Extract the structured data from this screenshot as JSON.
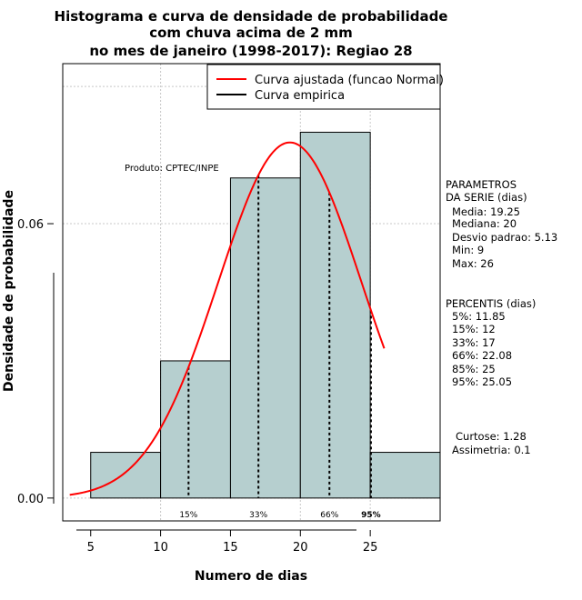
{
  "chart_data": {
    "type": "bar",
    "title_lines": [
      "Histograma e curva de densidade de probabilidade",
      "com chuva acima de 2 mm",
      "no mes de janeiro (1998-2017): Regiao 28"
    ],
    "xlabel": "Numero de dias",
    "ylabel": "Densidade de probabilidade",
    "xlim": [
      3,
      30
    ],
    "ylim": [
      -0.005,
      0.095
    ],
    "x_ticks": [
      5,
      10,
      15,
      20,
      25
    ],
    "y_ticks": [
      0.0,
      0.06
    ],
    "y_tick_labels": [
      "0.00",
      "0.06"
    ],
    "grid_x": [
      10,
      20,
      25
    ],
    "grid_y": [
      0.06,
      0.09
    ],
    "bins": [
      {
        "x0": 5,
        "x1": 10,
        "value": 0.01
      },
      {
        "x0": 10,
        "x1": 15,
        "value": 0.03
      },
      {
        "x0": 15,
        "x1": 20,
        "value": 0.07
      },
      {
        "x0": 20,
        "x1": 25,
        "value": 0.08
      },
      {
        "x0": 25,
        "x1": 30,
        "value": 0.01
      }
    ],
    "bar_color": "#b6cfcf",
    "normal_curve": {
      "mean": 19.25,
      "sd": 5.13,
      "x_from": 3.5,
      "x_to": 26,
      "color": "#ff0000"
    },
    "percentile_lines": [
      {
        "x": 12,
        "label": "15%"
      },
      {
        "x": 17,
        "label": "33%"
      },
      {
        "x": 22.08,
        "label": "66%"
      },
      {
        "x": 25.05,
        "label": "95%"
      }
    ],
    "legend": [
      {
        "label": "Curva ajustada (funcao Normal)",
        "color": "#ff0000"
      },
      {
        "label": "Curva empirica",
        "color": "#000000"
      }
    ],
    "legend_position": "top-right",
    "annotation": "Produto: CPTEC/INPE"
  },
  "side_panel": {
    "params_title": [
      "PARAMETROS",
      "DA SERIE (dias)"
    ],
    "params": [
      "Media: 19.25",
      "Mediana: 20",
      "Desvio padrao: 5.13",
      "Min: 9",
      "Max: 26"
    ],
    "percentiles_title": "PERCENTIS (dias)",
    "percentiles": [
      "5%: 11.85",
      "15%: 12",
      "33%: 17",
      "66%: 22.08",
      "85%: 25",
      "95%: 25.05"
    ],
    "shape": [
      "Curtose: 1.28",
      "Assimetria: 0.1"
    ]
  }
}
